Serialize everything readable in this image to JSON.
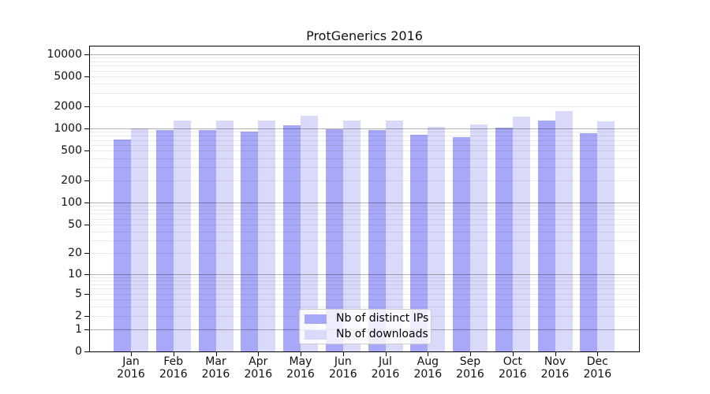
{
  "chart_data": {
    "type": "bar",
    "title": "ProtGenerics 2016",
    "categories": [
      "Jan 2016",
      "Feb 2016",
      "Mar 2016",
      "Apr 2016",
      "May 2016",
      "Jun 2016",
      "Jul 2016",
      "Aug 2016",
      "Sep 2016",
      "Oct 2016",
      "Nov 2016",
      "Dec 2016"
    ],
    "series": [
      {
        "name": "Nb of distinct IPs",
        "color": "#a8a8f8",
        "values": [
          710,
          960,
          950,
          900,
          1100,
          990,
          950,
          820,
          770,
          1030,
          1270,
          860
        ]
      },
      {
        "name": "Nb of downloads",
        "color": "#d9d9f9",
        "values": [
          1000,
          1270,
          1290,
          1280,
          1470,
          1270,
          1270,
          1050,
          1120,
          1460,
          1710,
          1250
        ]
      }
    ],
    "yscale": "log1p",
    "ylim": [
      0,
      12700
    ],
    "grid": true,
    "legend_position": "lower center"
  },
  "axes": {
    "y_ticks": [
      10000,
      5000,
      2000,
      1000,
      500,
      200,
      100,
      50,
      20,
      10,
      5,
      2,
      1,
      0
    ],
    "months": [
      "Jan",
      "Feb",
      "Mar",
      "Apr",
      "May",
      "Jun",
      "Jul",
      "Aug",
      "Sep",
      "Oct",
      "Nov",
      "Dec"
    ],
    "year_label": "2016"
  },
  "colors": {
    "grid_major": "rgba(0,0,0,0.30)",
    "grid_minor": "rgba(0,0,0,0.08)",
    "spine": "#000000",
    "background": "#ffffff"
  }
}
